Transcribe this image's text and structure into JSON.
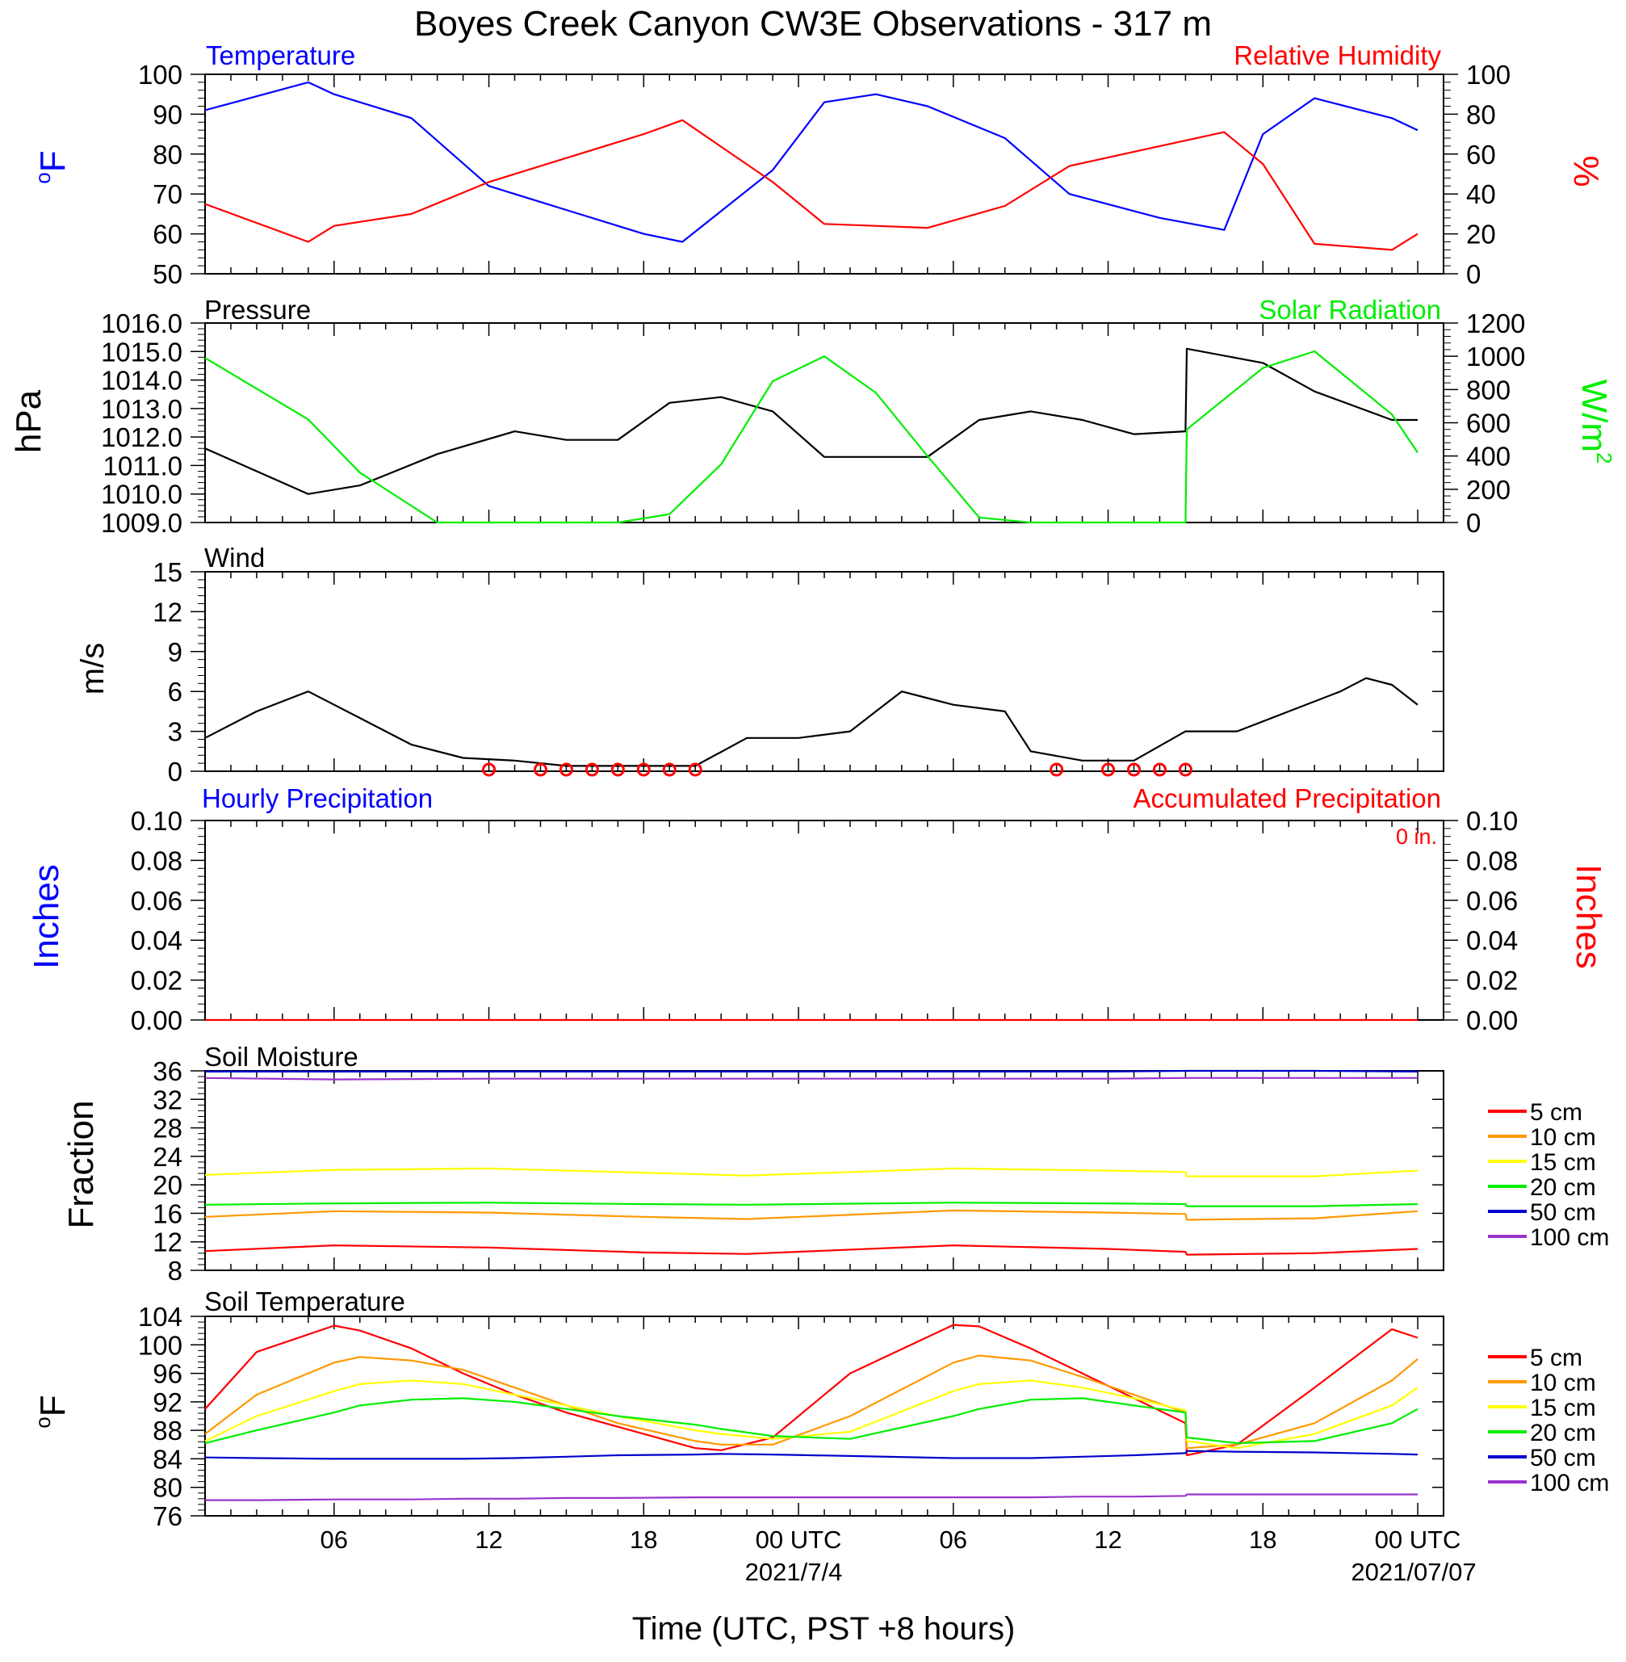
{
  "figure": {
    "title": "Boyes Creek Canyon CW3E Observations - 317 m",
    "xlabel": "Time (UTC, PST +8 hours)",
    "x_ticks": [
      "06",
      "12",
      "18",
      "00 UTC",
      "06",
      "12",
      "18",
      "00 UTC"
    ],
    "date_labels": [
      "2021/7/4",
      "2021/07/07"
    ]
  },
  "colors": {
    "blue": "#0000ff",
    "red": "#ff0000",
    "green": "#00ee00",
    "black": "#000000",
    "orange": "#ff9900",
    "yellow": "#ffff00",
    "navy": "#0000cc",
    "purple": "#9933cc"
  },
  "chart_data": [
    {
      "type": "line",
      "title_left": "Temperature",
      "title_right": "Relative Humidity",
      "ylabel_left": "oF",
      "ylabel_right": "%",
      "ylim_left": [
        50,
        100
      ],
      "ylim_right": [
        0,
        100
      ],
      "yticks_left": [
        "50",
        "60",
        "70",
        "80",
        "90",
        "100"
      ],
      "yticks_right": [
        "0",
        "20",
        "40",
        "60",
        "80",
        "100"
      ],
      "x_hours": [
        1,
        5,
        6,
        9,
        12,
        15,
        18,
        19.5,
        23,
        25,
        27,
        29,
        32,
        34.5,
        38,
        40.5,
        42,
        44,
        47,
        48
      ],
      "series": [
        {
          "name": "Temperature",
          "axis": "left",
          "color": "blue",
          "values": [
            91,
            98,
            95,
            89,
            72,
            66,
            60,
            58,
            76,
            93,
            95,
            92,
            84,
            70,
            64,
            61,
            85,
            94,
            89,
            86
          ]
        },
        {
          "name": "Relative Humidity",
          "axis": "right",
          "color": "red",
          "values": [
            35,
            16,
            24,
            30,
            46,
            58,
            70,
            77,
            46,
            25,
            24,
            23,
            34,
            54,
            64,
            71,
            55,
            15,
            12,
            20
          ]
        }
      ]
    },
    {
      "type": "line",
      "title_left": "Pressure",
      "title_right": "Solar Radiation",
      "ylabel_left": "hPa",
      "ylabel_right": "W/m2",
      "ylim_left": [
        1009.0,
        1016.0
      ],
      "ylim_right": [
        0,
        1200
      ],
      "yticks_left": [
        "1009.0",
        "1010.0",
        "1011.0",
        "1012.0",
        "1013.0",
        "1014.0",
        "1015.0",
        "1016.0"
      ],
      "yticks_right": [
        "0",
        "200",
        "400",
        "600",
        "800",
        "1000",
        "1200"
      ],
      "x_hours": [
        1,
        5,
        7,
        10,
        13,
        15,
        17,
        19,
        21,
        23,
        25,
        27,
        29,
        31,
        33,
        35,
        37,
        39,
        39.05,
        42,
        44,
        47,
        48
      ],
      "series": [
        {
          "name": "Pressure",
          "axis": "left",
          "color": "black",
          "values": [
            1011.6,
            1010.0,
            1010.3,
            1011.4,
            1012.2,
            1011.9,
            1011.9,
            1013.2,
            1013.4,
            1012.9,
            1011.3,
            1011.3,
            1011.3,
            1012.6,
            1012.9,
            1012.6,
            1012.1,
            1012.2,
            1015.1,
            1014.6,
            1013.6,
            1012.6,
            1012.6
          ]
        },
        {
          "name": "Solar Radiation",
          "axis": "right",
          "color": "green",
          "values": [
            990,
            620,
            300,
            0,
            0,
            0,
            0,
            50,
            350,
            850,
            1000,
            780,
            400,
            30,
            0,
            0,
            0,
            0,
            560,
            930,
            1030,
            650,
            420
          ]
        }
      ]
    },
    {
      "type": "line",
      "title_left": "Wind",
      "ylabel_left": "m/s",
      "ylim_left": [
        0,
        15
      ],
      "yticks_left": [
        "0",
        "3",
        "6",
        "9",
        "12",
        "15"
      ],
      "x_hours": [
        1,
        3,
        5,
        7,
        9,
        11,
        13,
        15,
        17,
        19,
        20,
        22,
        24,
        26,
        27,
        28,
        30,
        32,
        33,
        35,
        37,
        39,
        41,
        43,
        45,
        46,
        47,
        48
      ],
      "series": [
        {
          "name": "Wind speed",
          "axis": "left",
          "color": "black",
          "values": [
            2.5,
            4.5,
            6.0,
            4.0,
            2.0,
            1.0,
            0.8,
            0.4,
            0.4,
            0.4,
            0.4,
            2.5,
            2.5,
            3.0,
            4.5,
            6.0,
            5.0,
            4.5,
            1.5,
            0.8,
            0.8,
            3.0,
            3.0,
            4.5,
            6.0,
            7.0,
            6.5,
            5.0
          ]
        }
      ],
      "calm_hours": [
        12,
        14,
        15,
        16,
        17,
        18,
        19,
        20,
        34,
        36,
        37,
        38,
        39
      ]
    },
    {
      "type": "line",
      "title_left": "Hourly Precipitation",
      "title_right": "Accumulated Precipitation",
      "annotation": "0 in.",
      "ylabel_left": "Inches",
      "ylabel_right": "Inches",
      "ylim_left": [
        0,
        0.1
      ],
      "ylim_right": [
        0,
        0.1
      ],
      "yticks_left": [
        "0.00",
        "0.02",
        "0.04",
        "0.06",
        "0.08",
        "0.10"
      ],
      "yticks_right": [
        "0.00",
        "0.02",
        "0.04",
        "0.06",
        "0.08",
        "0.10"
      ],
      "x_hours": [
        1,
        48
      ],
      "series": [
        {
          "name": "Accumulated Precipitation",
          "axis": "left",
          "color": "red",
          "values": [
            0,
            0
          ]
        }
      ]
    },
    {
      "type": "line",
      "title_left": "Soil Moisture",
      "ylabel_left": "Fraction",
      "ylim_left": [
        8,
        36
      ],
      "yticks_left": [
        "8",
        "12",
        "16",
        "20",
        "24",
        "28",
        "32",
        "36"
      ],
      "x_hours": [
        1,
        6,
        12,
        18,
        22,
        30,
        36,
        39,
        39.05,
        44,
        48
      ],
      "legend": [
        "5 cm",
        "10 cm",
        "15 cm",
        "20 cm",
        "50 cm",
        "100 cm"
      ],
      "series": [
        {
          "name": "5 cm",
          "color": "red",
          "values": [
            10.7,
            11.5,
            11.2,
            10.5,
            10.3,
            11.5,
            11.0,
            10.6,
            10.2,
            10.4,
            11.0
          ]
        },
        {
          "name": "10 cm",
          "color": "orange",
          "values": [
            15.5,
            16.3,
            16.1,
            15.5,
            15.2,
            16.4,
            16.1,
            15.9,
            15.1,
            15.3,
            16.3
          ]
        },
        {
          "name": "15 cm",
          "color": "yellow",
          "values": [
            21.4,
            22.1,
            22.3,
            21.7,
            21.3,
            22.3,
            22.0,
            21.8,
            21.2,
            21.2,
            22.0
          ]
        },
        {
          "name": "20 cm",
          "color": "green",
          "values": [
            17.2,
            17.4,
            17.5,
            17.3,
            17.2,
            17.5,
            17.4,
            17.3,
            17.0,
            17.0,
            17.3
          ]
        },
        {
          "name": "50 cm",
          "color": "navy",
          "values": [
            35.9,
            35.9,
            35.9,
            35.9,
            35.9,
            35.9,
            35.9,
            36.0,
            36.0,
            36.0,
            35.9
          ]
        },
        {
          "name": "100 cm",
          "color": "purple",
          "values": [
            35.0,
            34.8,
            34.9,
            34.9,
            34.9,
            34.9,
            34.9,
            35.0,
            35.0,
            35.0,
            35.0
          ]
        }
      ]
    },
    {
      "type": "line",
      "title_left": "Soil Temperature",
      "ylabel_left": "oF",
      "ylim_left": [
        76,
        104
      ],
      "yticks_left": [
        "76",
        "80",
        "84",
        "88",
        "92",
        "96",
        "100",
        "104"
      ],
      "x_hours": [
        1,
        3,
        6,
        7,
        9,
        11,
        13,
        15,
        17,
        20,
        21,
        23,
        26,
        30,
        31,
        33,
        35,
        37,
        39,
        39.05,
        41,
        44,
        47,
        48
      ],
      "legend": [
        "5 cm",
        "10 cm",
        "15 cm",
        "20 cm",
        "50 cm",
        "100 cm"
      ],
      "series": [
        {
          "name": "5 cm",
          "color": "red",
          "values": [
            91,
            99,
            102.7,
            102,
            99.5,
            96,
            93,
            90.5,
            88.5,
            85.5,
            85.2,
            87,
            96,
            102.8,
            102.6,
            99.5,
            96,
            92.5,
            89,
            84.5,
            86,
            94,
            102.2,
            101
          ]
        },
        {
          "name": "10 cm",
          "color": "orange",
          "values": [
            87.5,
            93,
            97.5,
            98.3,
            97.8,
            96.5,
            94,
            91.5,
            89,
            86.5,
            86,
            86,
            90,
            97.5,
            98.5,
            97.8,
            95.5,
            93,
            90.5,
            85.5,
            86,
            89,
            95,
            98
          ]
        },
        {
          "name": "15 cm",
          "color": "yellow",
          "values": [
            86.5,
            90,
            93.5,
            94.5,
            95,
            94.5,
            93,
            91.5,
            90,
            88,
            87.5,
            86.8,
            87.8,
            93.5,
            94.5,
            95,
            94,
            92.5,
            90.8,
            86.5,
            85.5,
            87.5,
            91.5,
            94
          ]
        },
        {
          "name": "20 cm",
          "color": "green",
          "values": [
            86.2,
            88,
            90.5,
            91.5,
            92.3,
            92.5,
            92,
            91,
            90,
            88.8,
            88.2,
            87.2,
            86.8,
            90,
            91,
            92.3,
            92.5,
            91.5,
            90.5,
            87,
            86.2,
            86.5,
            89,
            91
          ]
        },
        {
          "name": "50 cm",
          "color": "navy",
          "values": [
            84.2,
            84.1,
            84,
            84,
            84,
            84,
            84.1,
            84.3,
            84.5,
            84.6,
            84.7,
            84.6,
            84.4,
            84.1,
            84.1,
            84.1,
            84.3,
            84.5,
            84.8,
            85.1,
            85,
            84.9,
            84.7,
            84.6
          ]
        },
        {
          "name": "100 cm",
          "color": "purple",
          "values": [
            78.2,
            78.2,
            78.3,
            78.3,
            78.3,
            78.4,
            78.4,
            78.5,
            78.5,
            78.6,
            78.6,
            78.6,
            78.6,
            78.6,
            78.6,
            78.6,
            78.7,
            78.7,
            78.8,
            79.0,
            79.0,
            79.0,
            79.0,
            79.0
          ]
        }
      ]
    }
  ]
}
